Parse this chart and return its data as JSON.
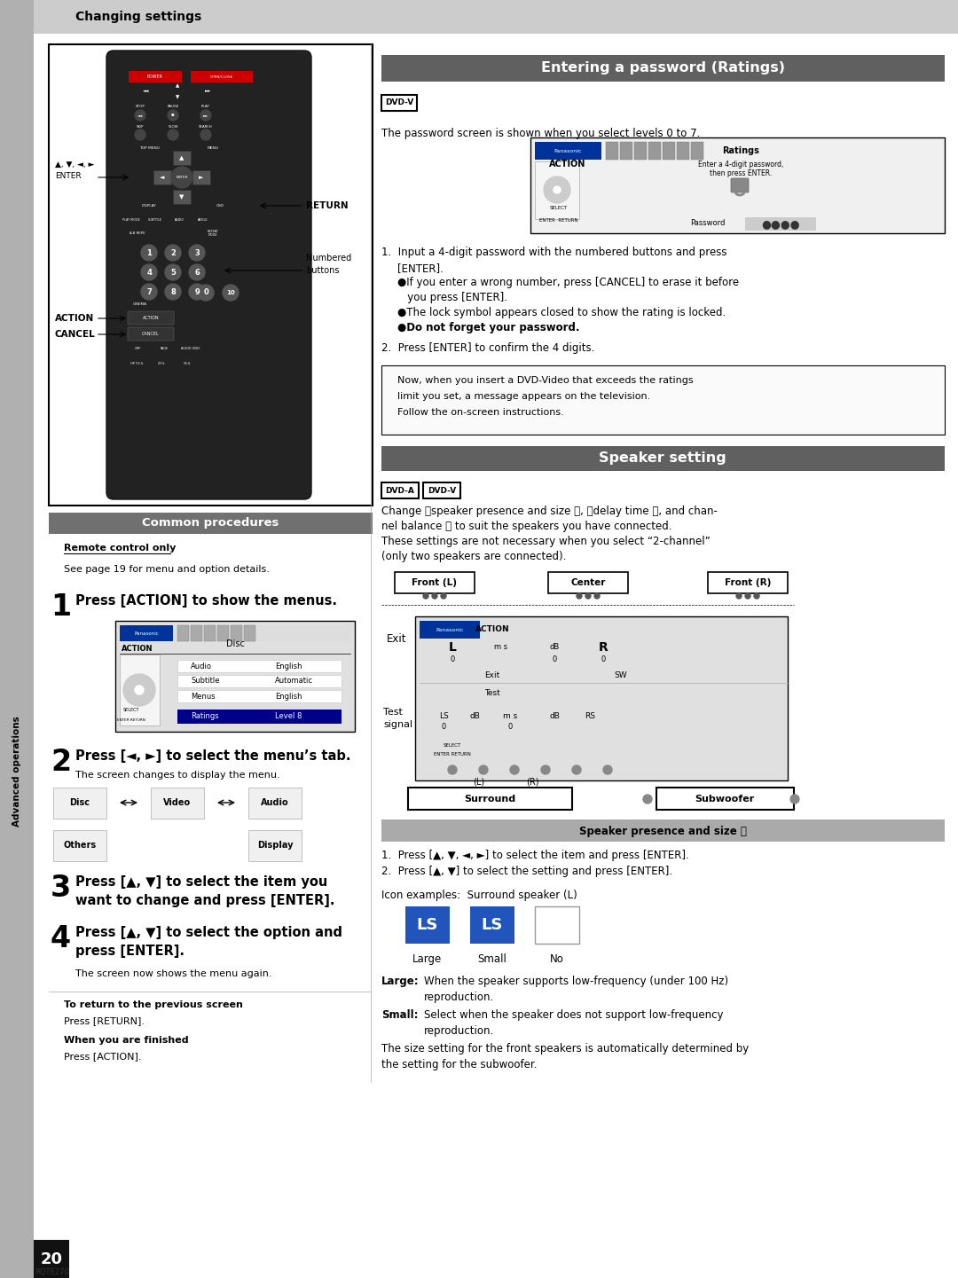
{
  "page_width": 10.8,
  "page_height": 14.41,
  "dpi": 100,
  "bg_color": "#ffffff",
  "header_bg": "#cccccc",
  "header_text": "Changing settings",
  "section_header_bg": "#606060",
  "section_header_text_color": "#ffffff",
  "sidebar_text": "Advanced operations",
  "page_number": "20",
  "page_code": "RQT6270",
  "entering_password_title": "Entering a password (Ratings)",
  "dvd_v_label": "DVD-V",
  "dvd_a_label": "DVD-A",
  "password_intro": "The password screen is shown when you select levels 0 to 7.",
  "common_procedures_title": "Common procedures",
  "speaker_setting_title": "Speaker setting",
  "step1_text": "Press [ACTION] to show the menus.",
  "step2_text": "Press [◄, ►] to select the menu’s tab.",
  "step2_sub": "The screen changes to display the menu.",
  "step3_text": "Press [▲, ▼] to select the item you\nwant to change and press [ENTER].",
  "step4_text": "Press [▲, ▼] to select the option and\npress [ENTER].",
  "step4_sub": "The screen now shows the menu again.",
  "return_label": "To return to the previous screen",
  "return_text": "Press [RETURN].",
  "finished_label": "When you are finished",
  "finished_text": "Press [ACTION].",
  "remote_only": "Remote control only",
  "see_page": "See page 19 for menu and option details.",
  "action_label": "ACTION",
  "cancel_label": "CANCEL",
  "return_btn_label": "RETURN",
  "numbered_label": "Numbered\nbuttons",
  "arrows_label": "▲, ▼, ◄, ►\nENTER"
}
